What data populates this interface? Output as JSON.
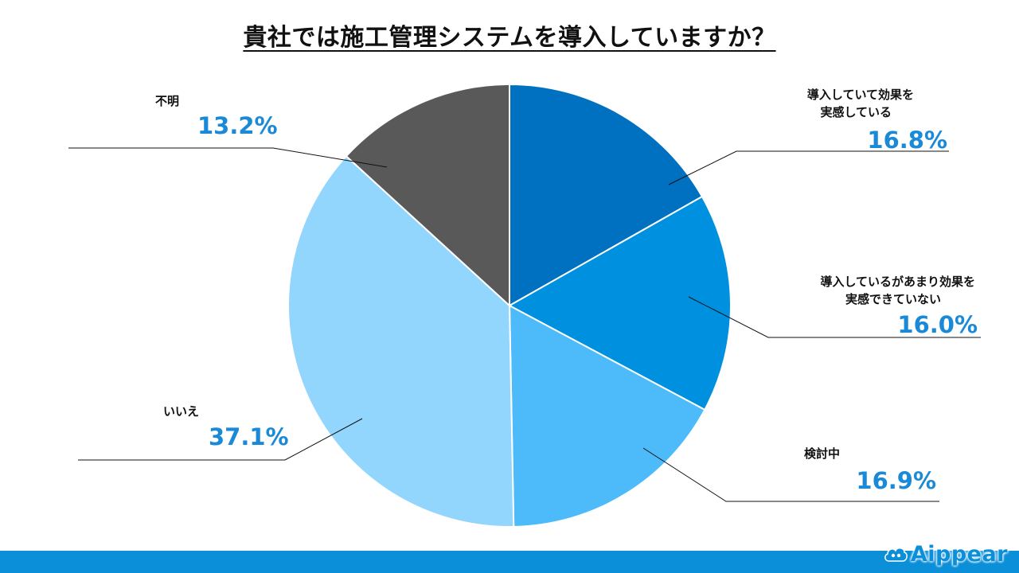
{
  "chart_data": {
    "type": "pie",
    "title": "貴社では施工管理システムを導入していますか？",
    "start_angle_deg": 0,
    "direction": "clockwise",
    "slices": [
      {
        "label_lines": [
          "導入していて効果を",
          "実感している"
        ],
        "value": 16.8,
        "value_label": "16.8%",
        "color": "#0070c0"
      },
      {
        "label_lines": [
          "導入しているがあまり効果を",
          "実感できていない"
        ],
        "value": 16.0,
        "value_label": "16.0%",
        "color": "#0090e0"
      },
      {
        "label_lines": [
          "検討中"
        ],
        "value": 16.9,
        "value_label": "16.9%",
        "color": "#4dbbfa"
      },
      {
        "label_lines": [
          "いいえ"
        ],
        "value": 37.1,
        "value_label": "37.1%",
        "color": "#92d5fd"
      },
      {
        "label_lines": [
          "不明"
        ],
        "value": 13.2,
        "value_label": "13.2%",
        "color": "#595959"
      }
    ]
  },
  "brand": {
    "name": "Aippear",
    "color": "#0b8fd8"
  }
}
